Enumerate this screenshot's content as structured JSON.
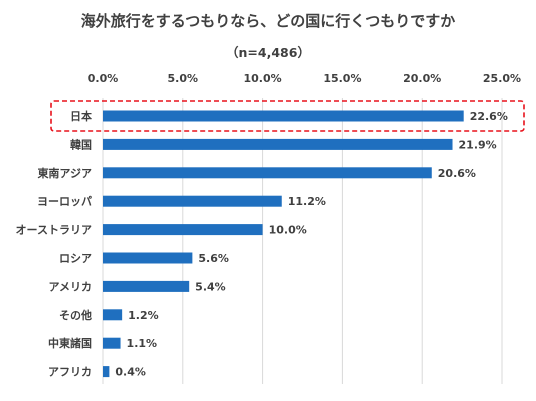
{
  "title": "海外旅行をするつもりなら、どの国に行くつもりですか",
  "subtitle": "（n=4,486）",
  "chart_data": {
    "type": "bar",
    "orientation": "horizontal",
    "title": "海外旅行をするつもりなら、どの国に行くつもりですか",
    "subtitle": "（n=4,486）",
    "categories": [
      "日本",
      "韓国",
      "東南アジア",
      "ヨーロッパ",
      "オーストラリア",
      "ロシア",
      "アメリカ",
      "その他",
      "中東諸国",
      "アフリカ"
    ],
    "values": [
      22.6,
      21.9,
      20.6,
      11.2,
      10.0,
      5.6,
      5.4,
      1.2,
      1.1,
      0.4
    ],
    "value_labels": [
      "22.6%",
      "21.9%",
      "20.6%",
      "11.2%",
      "10.0%",
      "5.6%",
      "5.4%",
      "1.2%",
      "1.1%",
      "0.4%"
    ],
    "xlim": [
      0,
      25
    ],
    "ticks": [
      0,
      5,
      10,
      15,
      20,
      25
    ],
    "tick_labels": [
      "0.0%",
      "5.0%",
      "10.0%",
      "15.0%",
      "20.0%",
      "25.0%"
    ],
    "axis_position": "top",
    "grid": true,
    "highlighted_category": "日本",
    "colors": {
      "bar": "#1F6FBF",
      "highlight_border": "#E8121C",
      "grid": "#D9D9D9"
    }
  }
}
